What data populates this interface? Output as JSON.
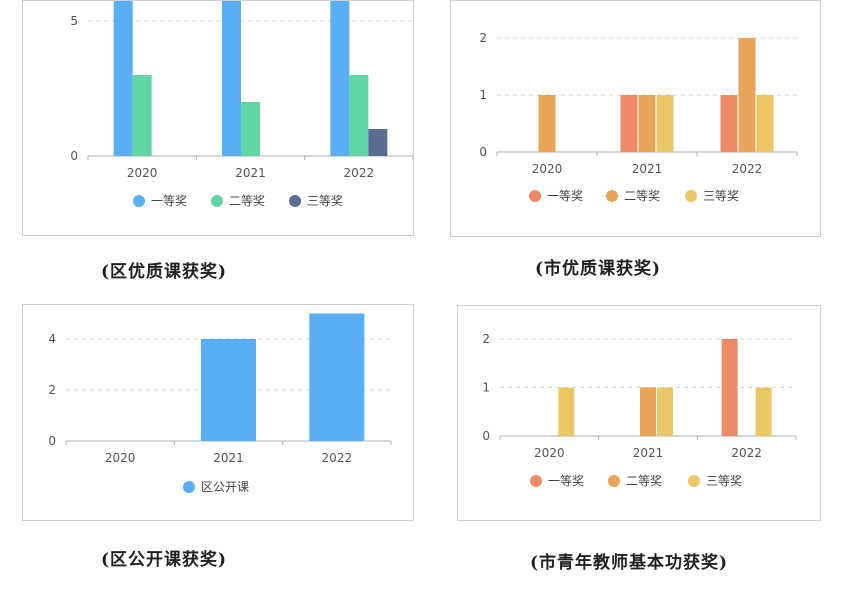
{
  "captions": [
    "(区优质课获奖)",
    "(市优质课获奖)",
    "(区公开课获奖)",
    "(市青年教师基本功获奖)"
  ],
  "chart_data": [
    {
      "type": "bar",
      "categories": [
        "2020",
        "2021",
        "2022"
      ],
      "series": [
        {
          "name": "一等奖",
          "values": [
            6,
            8,
            9
          ],
          "color": "#5aaef3"
        },
        {
          "name": "二等奖",
          "values": [
            3,
            2,
            3
          ],
          "color": "#5fd6a4"
        },
        {
          "name": "三等奖",
          "values": [
            0,
            0,
            1
          ],
          "color": "#5b6c93"
        }
      ],
      "ylim": [
        0,
        10
      ],
      "yticks": [
        0,
        5
      ],
      "grid": true,
      "legend": "bottom"
    },
    {
      "type": "bar",
      "categories": [
        "2020",
        "2021",
        "2022"
      ],
      "series": [
        {
          "name": "一等奖",
          "values": [
            0,
            1,
            1
          ],
          "color": "#ee8b66"
        },
        {
          "name": "二等奖",
          "values": [
            1,
            1,
            2
          ],
          "color": "#e8a55a"
        },
        {
          "name": "三等奖",
          "values": [
            0,
            1,
            1
          ],
          "color": "#ebc865"
        }
      ],
      "ylim": [
        0,
        2
      ],
      "yticks": [
        0,
        1,
        2
      ],
      "grid": true,
      "legend": "bottom"
    },
    {
      "type": "bar",
      "categories": [
        "2020",
        "2021",
        "2022"
      ],
      "series": [
        {
          "name": "区公开课",
          "values": [
            0,
            4,
            5
          ],
          "color": "#5aaef3"
        }
      ],
      "ylim": [
        0,
        5
      ],
      "yticks": [
        0,
        2,
        4
      ],
      "grid": true,
      "legend": "bottom"
    },
    {
      "type": "bar",
      "categories": [
        "2020",
        "2021",
        "2022"
      ],
      "series": [
        {
          "name": "一等奖",
          "values": [
            0,
            0,
            2
          ],
          "color": "#ee8b66"
        },
        {
          "name": "二等奖",
          "values": [
            0,
            1,
            0
          ],
          "color": "#e8a55a"
        },
        {
          "name": "三等奖",
          "values": [
            1,
            1,
            1
          ],
          "color": "#ebc865"
        }
      ],
      "ylim": [
        0,
        2
      ],
      "yticks": [
        0,
        1,
        2
      ],
      "grid": true,
      "legend": "bottom"
    }
  ]
}
